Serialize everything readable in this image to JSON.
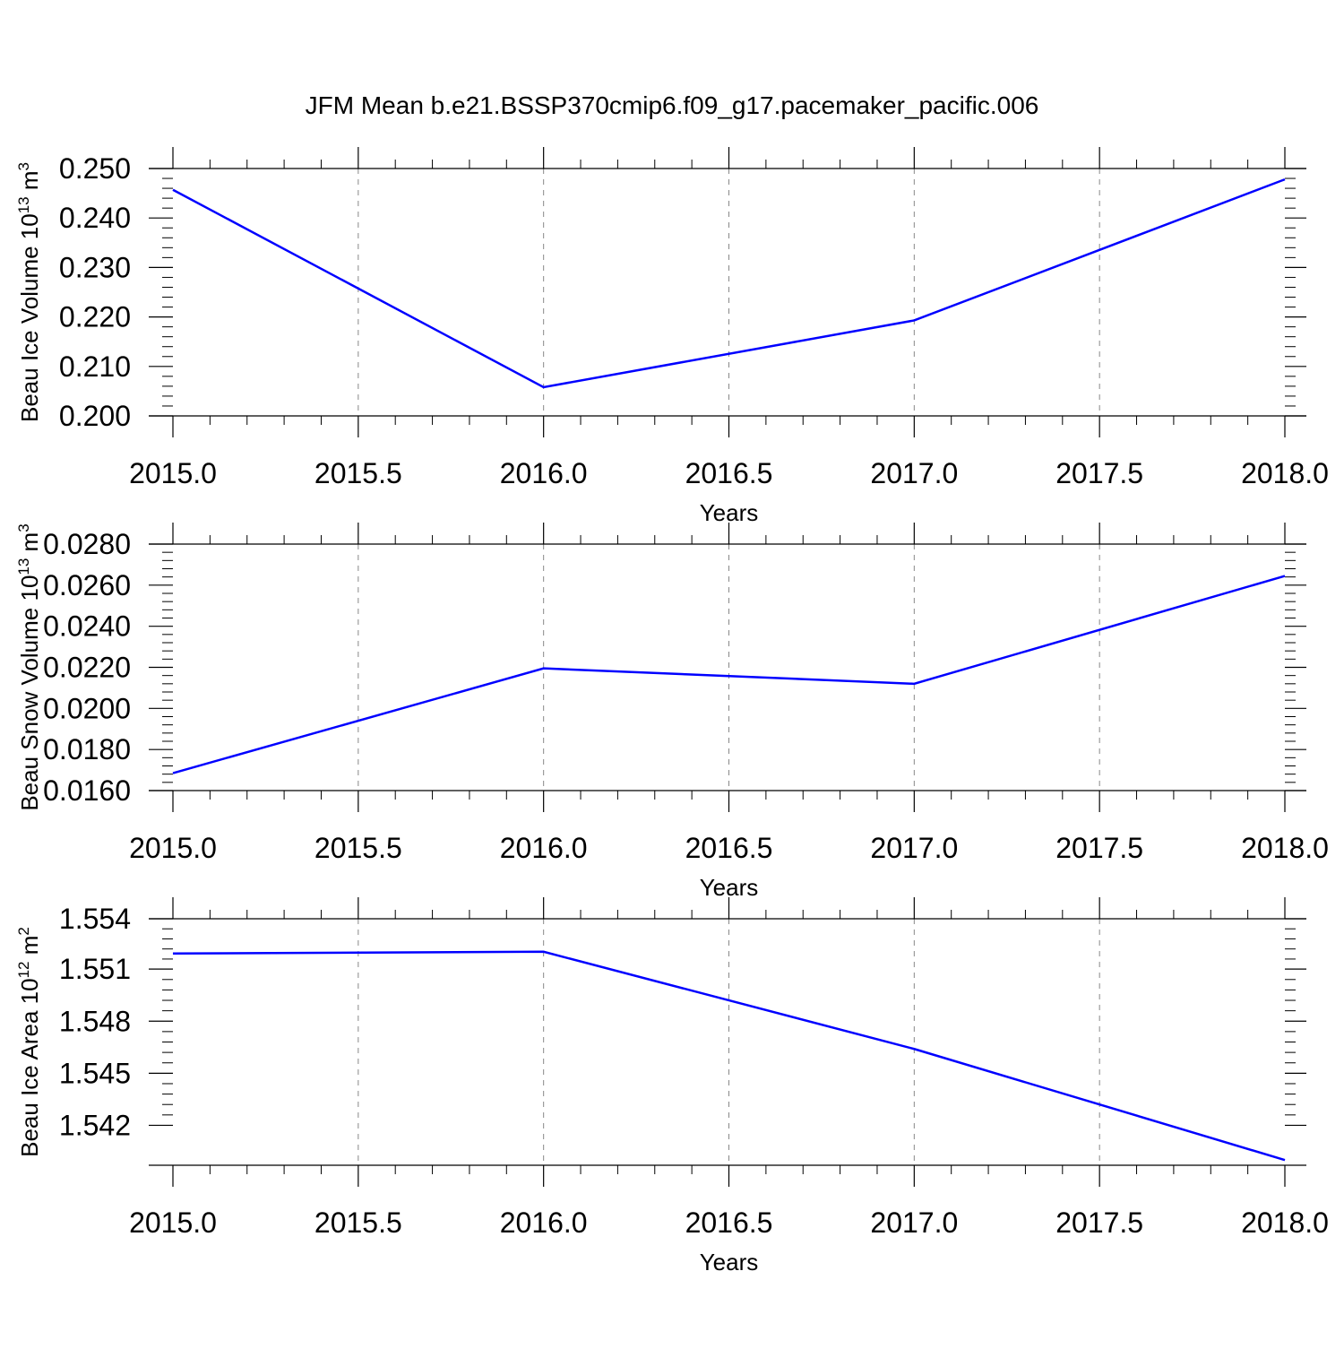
{
  "title": "JFM Mean b.e21.BSSP370cmip6.f09_g17.pacemaker_pacific.006",
  "colors": {
    "line": "#0000ff",
    "axis": "#000000",
    "grid": "#888888"
  },
  "chart_data": [
    {
      "type": "line",
      "ylabel_text": "Beau Ice Volume 10",
      "ylabel_exp": "13",
      "ylabel_unit": " m",
      "ylabel_unit_exp": "3",
      "xlabel": "Years",
      "xlim": [
        2015.0,
        2018.0
      ],
      "ylim": [
        0.2,
        0.25
      ],
      "xticks": [
        "2015.0",
        "2015.5",
        "2016.0",
        "2016.5",
        "2017.0",
        "2017.5",
        "2018.0"
      ],
      "yticks": [
        {
          "value": 0.2,
          "label": "0.200"
        },
        {
          "value": 0.21,
          "label": "0.210"
        },
        {
          "value": 0.22,
          "label": "0.220"
        },
        {
          "value": 0.23,
          "label": "0.230"
        },
        {
          "value": 0.24,
          "label": "0.240"
        },
        {
          "value": 0.25,
          "label": "0.250"
        }
      ],
      "grid": "vertical dashed",
      "series": [
        {
          "x": [
            2015,
            2016,
            2017,
            2018
          ],
          "values": [
            0.2457,
            0.2058,
            0.2193,
            0.2478
          ]
        }
      ]
    },
    {
      "type": "line",
      "ylabel_text": "Beau Snow Volume 10",
      "ylabel_exp": "13",
      "ylabel_unit": " m",
      "ylabel_unit_exp": "3",
      "xlabel": "Years",
      "xlim": [
        2015.0,
        2018.0
      ],
      "ylim": [
        0.016,
        0.028
      ],
      "xticks": [
        "2015.0",
        "2015.5",
        "2016.0",
        "2016.5",
        "2017.0",
        "2017.5",
        "2018.0"
      ],
      "yticks": [
        {
          "value": 0.016,
          "label": "0.0160"
        },
        {
          "value": 0.018,
          "label": "0.0180"
        },
        {
          "value": 0.02,
          "label": "0.0200"
        },
        {
          "value": 0.022,
          "label": "0.0220"
        },
        {
          "value": 0.024,
          "label": "0.0240"
        },
        {
          "value": 0.026,
          "label": "0.0260"
        },
        {
          "value": 0.028,
          "label": "0.0280"
        }
      ],
      "grid": "vertical dashed",
      "series": [
        {
          "x": [
            2015,
            2016,
            2017,
            2018
          ],
          "values": [
            0.01685,
            0.02195,
            0.0212,
            0.02645
          ]
        }
      ]
    },
    {
      "type": "line",
      "ylabel_text": "Beau Ice Area 10",
      "ylabel_exp": "12",
      "ylabel_unit": " m",
      "ylabel_unit_exp": "2",
      "xlabel": "Years",
      "xlim": [
        2015.0,
        2018.0
      ],
      "ylim": [
        1.5398,
        1.554
      ],
      "xticks": [
        "2015.0",
        "2015.5",
        "2016.0",
        "2016.5",
        "2017.0",
        "2017.5",
        "2018.0"
      ],
      "yticks": [
        {
          "value": 1.5421,
          "label": "1.542"
        },
        {
          "value": 1.5451,
          "label": "1.545"
        },
        {
          "value": 1.5481,
          "label": "1.548"
        },
        {
          "value": 1.5511,
          "label": "1.551"
        },
        {
          "value": 1.554,
          "label": "1.554"
        }
      ],
      "grid": "vertical dashed",
      "series": [
        {
          "x": [
            2015,
            2016,
            2017,
            2018
          ],
          "values": [
            1.552,
            1.5521,
            1.5465,
            1.5401
          ]
        }
      ]
    }
  ]
}
